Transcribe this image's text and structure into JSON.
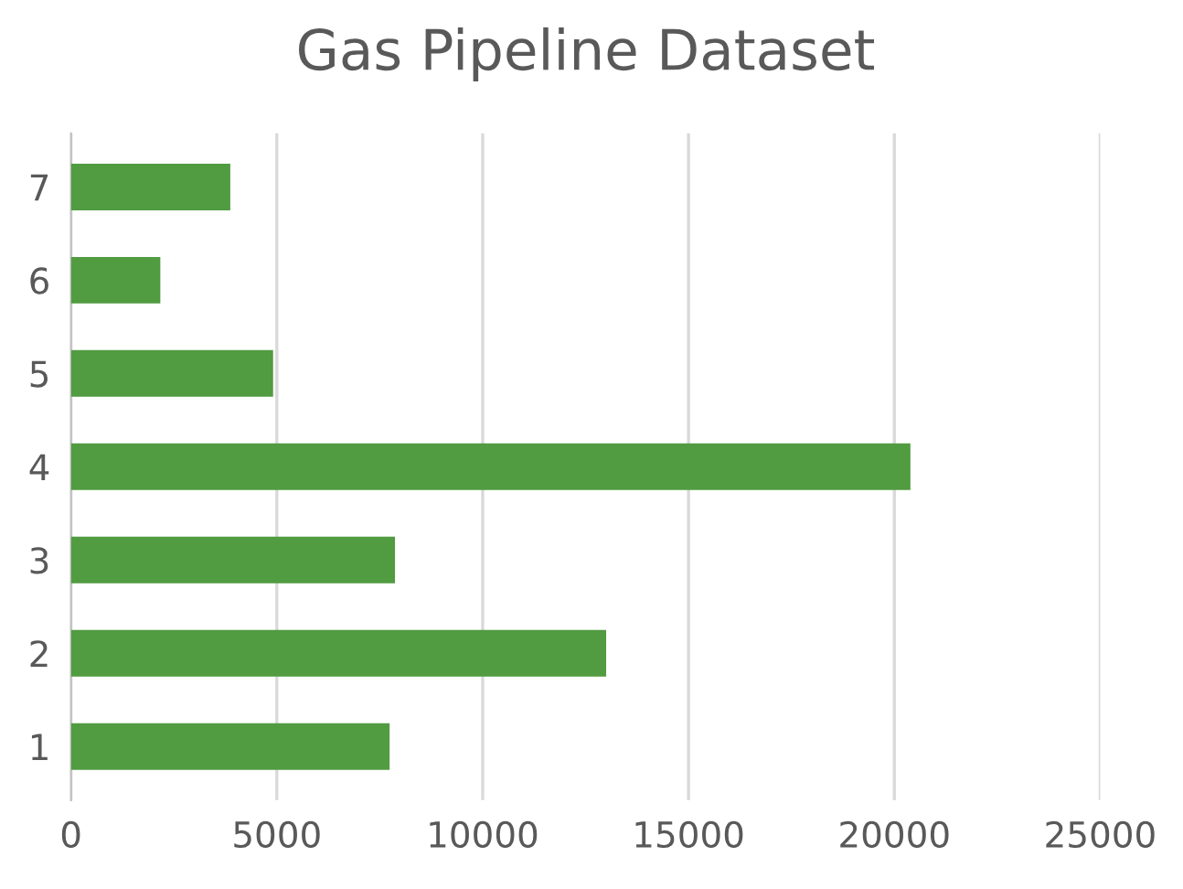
{
  "chart_data": {
    "type": "bar",
    "title": "Gas Pipeline Dataset",
    "orientation": "horizontal",
    "categories": [
      "7",
      "6",
      "5",
      "4",
      "3",
      "2",
      "1"
    ],
    "values": [
      3870,
      2170,
      4910,
      20390,
      7870,
      13000,
      7740
    ],
    "color": "#519b41",
    "xlim": [
      0,
      25000
    ],
    "xticks": [
      0,
      5000,
      10000,
      15000,
      20000,
      25000
    ],
    "grid": "x",
    "legend": false
  }
}
